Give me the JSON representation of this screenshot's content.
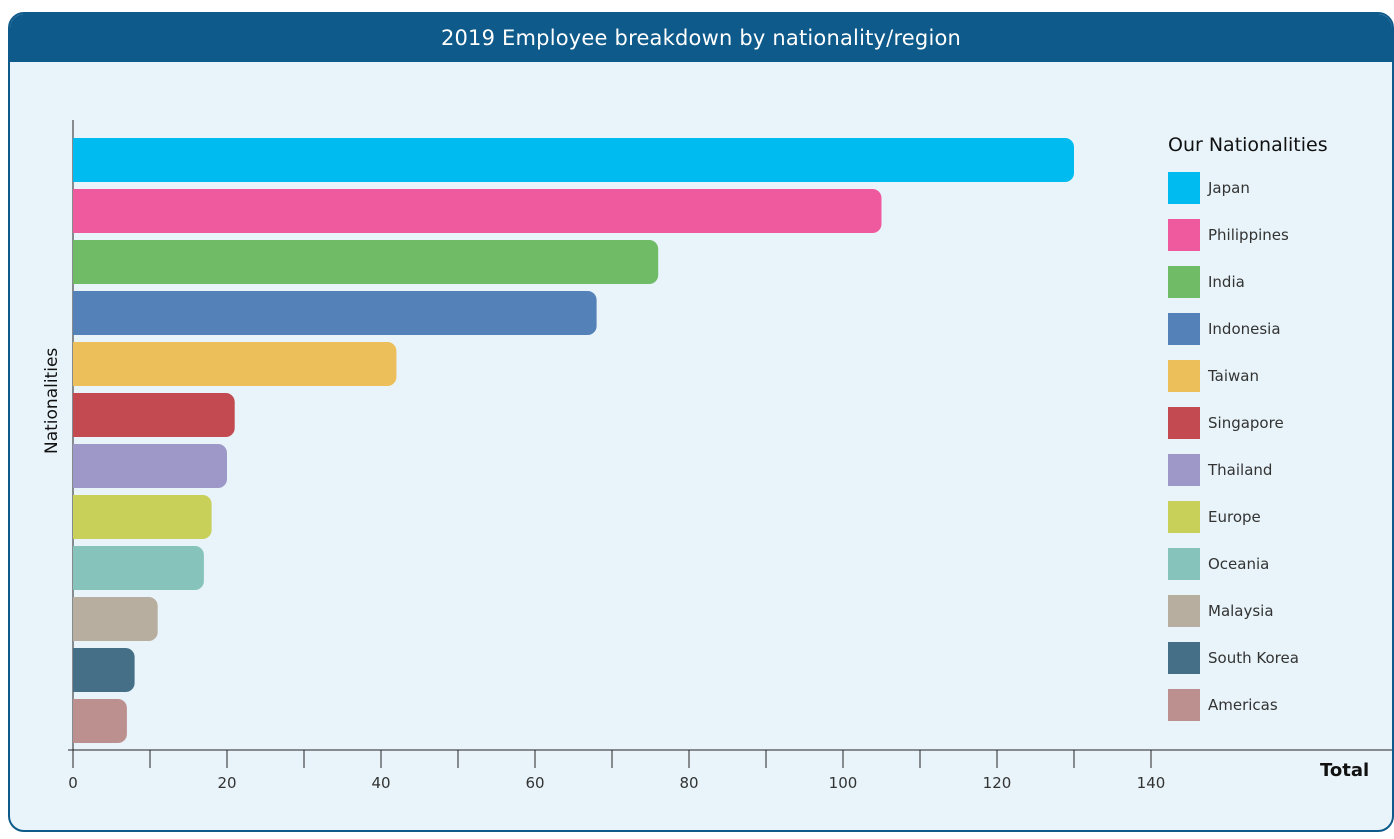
{
  "title": "2019 Employee breakdown by nationality/region",
  "legend_title": "Our Nationalities",
  "chart_data": {
    "type": "bar",
    "orientation": "horizontal",
    "title": "2019 Employee breakdown by nationality/region",
    "xlabel": "Total",
    "ylabel": "Nationalities",
    "xlim": [
      0,
      150
    ],
    "xticks": [
      0,
      20,
      40,
      60,
      80,
      100,
      120,
      140
    ],
    "grid": false,
    "legend_position": "right",
    "categories": [
      "Japan",
      "Philippines",
      "India",
      "Indonesia",
      "Taiwan",
      "Singapore",
      "Thailand",
      "Europe",
      "Oceania",
      "Malaysia",
      "South Korea",
      "Americas"
    ],
    "values": [
      130,
      105,
      76,
      68,
      42,
      21,
      20,
      18,
      17,
      11,
      8,
      7
    ],
    "colors": [
      "#00bbf0",
      "#ef5a9e",
      "#6fbb66",
      "#5481b8",
      "#edbf5a",
      "#c34a50",
      "#9e98c8",
      "#c8d05a",
      "#86c4bb",
      "#b8ae9f",
      "#456f87",
      "#bd9090"
    ]
  }
}
